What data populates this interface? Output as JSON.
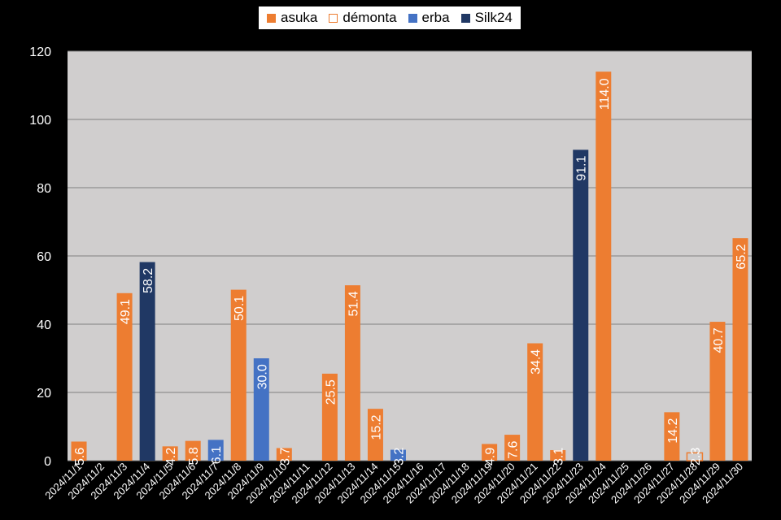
{
  "chart_data": {
    "type": "bar",
    "title": "",
    "xlabel": "",
    "ylabel": "",
    "ylim": [
      0,
      120
    ],
    "yticks": [
      0,
      20,
      40,
      60,
      80,
      100,
      120
    ],
    "grid": true,
    "legend_position": "top",
    "colors": {
      "asuka": "#ED7D31",
      "demonta": "#ED7D31",
      "erba": "#4472C4",
      "silk24": "#203864",
      "plot_bg": "#D0CECE",
      "gridline": "#808080"
    },
    "categories": [
      "2024/11/1",
      "2024/11/2",
      "2024/11/3",
      "2024/11/4",
      "2024/11/5",
      "2024/11/6",
      "2024/11/7",
      "2024/11/8",
      "2024/11/9",
      "2024/11/10",
      "2024/11/11",
      "2024/11/12",
      "2024/11/13",
      "2024/11/14",
      "2024/11/15",
      "2024/11/16",
      "2024/11/17",
      "2024/11/18",
      "2024/11/19",
      "2024/11/20",
      "2024/11/21",
      "2024/11/22",
      "2024/11/23",
      "2024/11/24",
      "2024/11/25",
      "2024/11/26",
      "2024/11/27",
      "2024/11/28",
      "2024/11/29",
      "2024/11/30"
    ],
    "series": [
      {
        "name": "asuka",
        "style": "solid",
        "values": [
          5.6,
          null,
          49.1,
          null,
          4.2,
          5.8,
          null,
          50.1,
          null,
          3.7,
          null,
          25.5,
          51.4,
          15.2,
          null,
          null,
          null,
          null,
          4.9,
          7.6,
          34.4,
          3.1,
          null,
          114.0,
          null,
          null,
          14.2,
          null,
          40.7,
          65.2
        ]
      },
      {
        "name": "démonta",
        "style": "outline",
        "values": [
          null,
          null,
          null,
          null,
          null,
          null,
          null,
          null,
          null,
          null,
          null,
          null,
          null,
          null,
          null,
          null,
          null,
          null,
          null,
          null,
          null,
          null,
          null,
          null,
          null,
          null,
          null,
          2.3,
          null,
          null
        ]
      },
      {
        "name": "erba",
        "style": "solid",
        "values": [
          null,
          null,
          null,
          null,
          null,
          null,
          6.1,
          null,
          30.0,
          null,
          null,
          null,
          null,
          null,
          3.2,
          null,
          null,
          null,
          null,
          null,
          null,
          null,
          null,
          null,
          null,
          null,
          null,
          null,
          null,
          null
        ]
      },
      {
        "name": "Silk24",
        "style": "solid",
        "values": [
          null,
          null,
          null,
          58.2,
          null,
          null,
          null,
          null,
          null,
          null,
          null,
          null,
          null,
          null,
          null,
          null,
          null,
          null,
          null,
          null,
          null,
          null,
          91.1,
          null,
          null,
          null,
          null,
          null,
          null,
          null
        ]
      }
    ]
  }
}
